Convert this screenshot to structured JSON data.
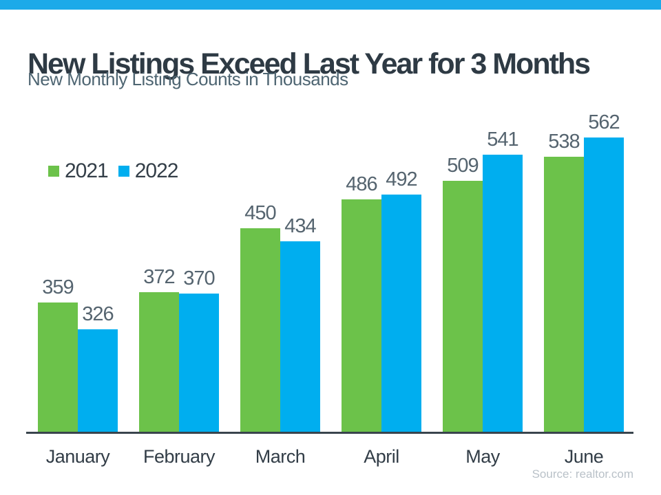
{
  "page": {
    "top_strip_color": "#1caae9",
    "background_color": "#ffffff",
    "axis_line_color": "#39444d"
  },
  "header": {
    "title": "New Listings Exceed Last Year for 3 Months",
    "subtitle": "New Monthly Listing Counts in Thousands"
  },
  "footer": {
    "source": "Source: realtor.com"
  },
  "chart_data": {
    "type": "bar",
    "title": "New Listings Exceed Last Year for 3 Months",
    "subtitle": "New Monthly Listing Counts in Thousands",
    "categories": [
      "January",
      "February",
      "March",
      "April",
      "May",
      "June"
    ],
    "series": [
      {
        "name": "2021",
        "color": "#6cc24a",
        "values": [
          359,
          372,
          450,
          486,
          509,
          538
        ]
      },
      {
        "name": "2022",
        "color": "#00aeef",
        "values": [
          326,
          370,
          434,
          492,
          541,
          562
        ]
      }
    ],
    "xlabel": "",
    "ylabel": "",
    "ylim": [
      200,
      600
    ],
    "grid": false,
    "legend_position": "top-left",
    "value_labels": true,
    "value_label_color": "#55646f",
    "month_label_color": "#323d47",
    "source": "Source: realtor.com"
  }
}
